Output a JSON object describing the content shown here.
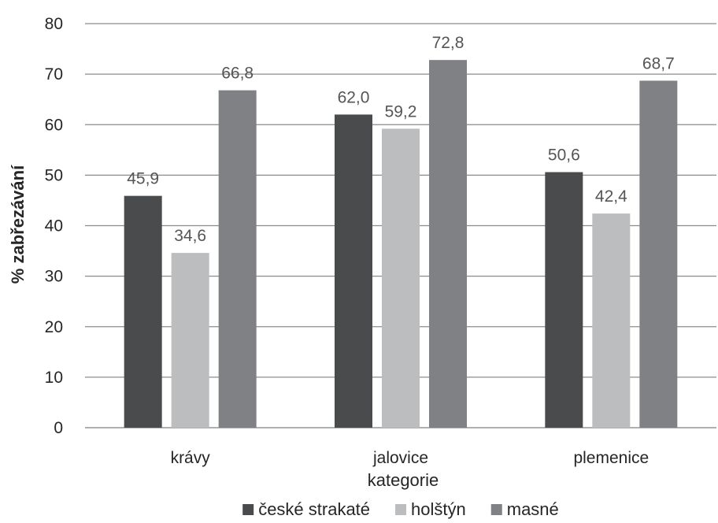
{
  "chart_data": {
    "type": "bar",
    "categories": [
      "krávy",
      "jalovice",
      "plemenice"
    ],
    "series": [
      {
        "name": "české strakaté",
        "values": [
          45.9,
          62.0,
          50.6
        ],
        "labels": [
          "45,9",
          "62,0",
          "50,6"
        ],
        "color": "#4a4b4d"
      },
      {
        "name": "holštýn",
        "values": [
          34.6,
          59.2,
          42.4
        ],
        "labels": [
          "34,6",
          "59,2",
          "42,4"
        ],
        "color": "#bcbdbf"
      },
      {
        "name": "masné",
        "values": [
          66.8,
          72.8,
          68.7
        ],
        "labels": [
          "66,8",
          "72,8",
          "68,7"
        ],
        "color": "#808184"
      }
    ],
    "xlabel": "kategorie",
    "ylabel": "% zabřezávání",
    "ylim": [
      0,
      80
    ],
    "yticks": [
      0,
      10,
      20,
      30,
      40,
      50,
      60,
      70,
      80
    ],
    "grid": true,
    "legend_position": "bottom"
  }
}
